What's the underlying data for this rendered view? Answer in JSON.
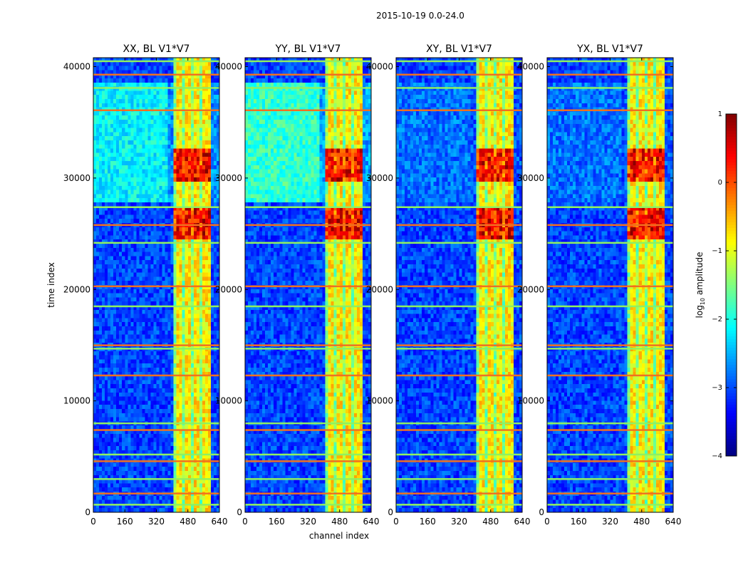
{
  "figure": {
    "title": "2015-10-19 0.0-24.0"
  },
  "chart_data": {
    "type": "heatmap",
    "title": "2015-10-19 0.0-24.0",
    "xlabel": "channel index",
    "ylabel": "time index",
    "xlim": [
      0,
      640
    ],
    "ylim": [
      0,
      40800
    ],
    "xticks": [
      "0",
      "160",
      "320",
      "480",
      "640"
    ],
    "xtick_values": [
      0,
      160,
      320,
      480,
      640
    ],
    "yticks": [
      "0",
      "10000",
      "20000",
      "30000",
      "40000"
    ],
    "ytick_values": [
      0,
      10000,
      20000,
      30000,
      40000
    ],
    "panels": [
      {
        "name": "XX",
        "title": "XX, BL V1*V7",
        "cyan_strength": 1.0
      },
      {
        "name": "YY",
        "title": "YY, BL V1*V7",
        "cyan_strength": 1.3
      },
      {
        "name": "XY",
        "title": "XY, BL V1*V7",
        "cyan_strength": 0.25
      },
      {
        "name": "YX",
        "title": "YX, BL V1*V7",
        "cyan_strength": 0.25
      }
    ],
    "signal_band_channels": [
      410,
      590
    ],
    "bright_time_ranges": [
      [
        24500,
        27500
      ],
      [
        29500,
        32500
      ]
    ],
    "flagged_time_rows": [
      700,
      1700,
      3000,
      4600,
      5200,
      7400,
      8000,
      12300,
      14700,
      15000,
      18500,
      20300,
      24200,
      25800,
      27400,
      36100,
      38100,
      39300,
      40500
    ],
    "colorbar": {
      "label": "log10 amplitude",
      "label_main": "log",
      "label_sub": "10",
      "label_suffix": " amplitude",
      "range": [
        -4,
        1
      ],
      "ticks": [
        "1",
        "0",
        "−1",
        "−2",
        "−3",
        "−4"
      ],
      "tick_values": [
        1,
        0,
        -1,
        -2,
        -3,
        -4
      ],
      "colormap": "jet"
    }
  }
}
